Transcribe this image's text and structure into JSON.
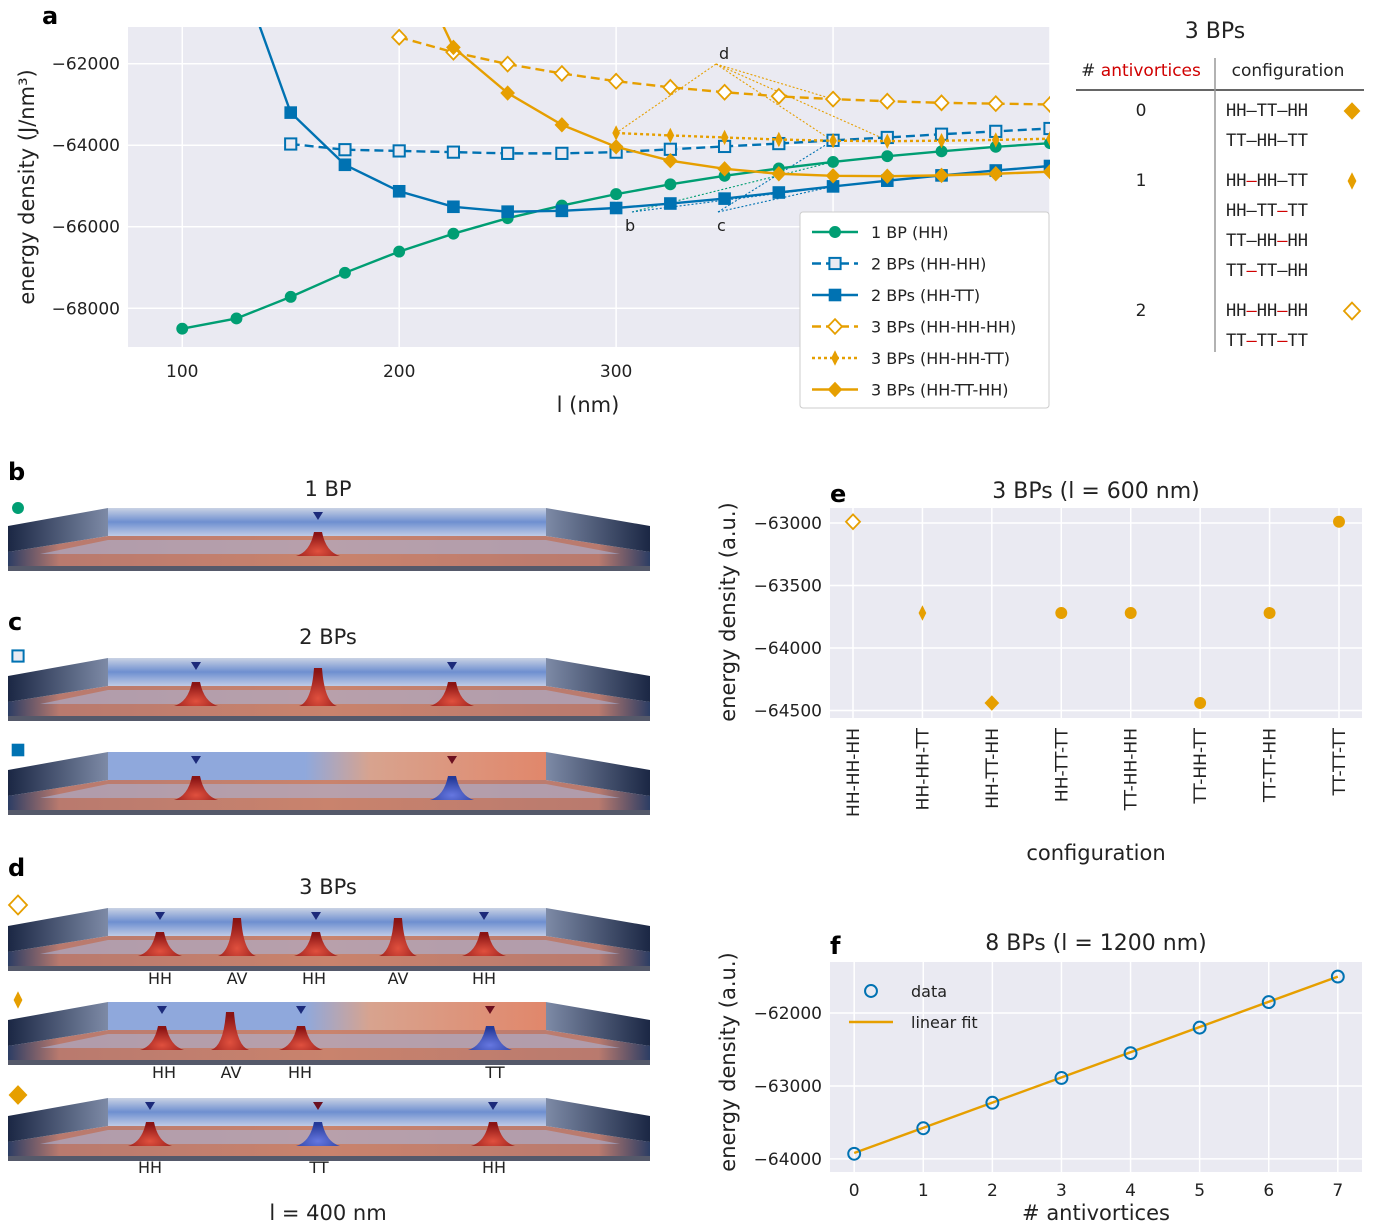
{
  "colors": {
    "green": "#009E73",
    "blue": "#0072B2",
    "orange": "#E69F00",
    "red": "#D00000",
    "axes_bg": "#EAEAF2"
  },
  "panel_letters": [
    "a",
    "b",
    "c",
    "d",
    "e",
    "f"
  ],
  "chart_data": [
    {
      "id": "a",
      "type": "line",
      "xlabel": "l (nm)",
      "ylabel": "energy density (J/nm³)",
      "xlim": [
        75,
        500
      ],
      "ylim": [
        -68950,
        -61100
      ],
      "xticks": [
        100,
        200,
        300,
        400
      ],
      "yticks": [
        -68000,
        -66000,
        -64000,
        -62000
      ],
      "ytick_labels": [
        "−68000",
        "−66000",
        "−64000",
        "−62000"
      ],
      "grid": true,
      "legend_position": "lower-right",
      "annotations": [
        "b",
        "c",
        "d"
      ],
      "series": [
        {
          "name": "1 BP (HH)",
          "color": "green",
          "marker": "circle-filled",
          "dash": "solid",
          "x": [
            100,
            125,
            150,
            175,
            200,
            225,
            250,
            275,
            300,
            325,
            350,
            375,
            400,
            425,
            450,
            475,
            500
          ],
          "y": [
            -68500,
            -68250,
            -67720,
            -67130,
            -66610,
            -66170,
            -65790,
            -65480,
            -65200,
            -64960,
            -64750,
            -64570,
            -64410,
            -64270,
            -64150,
            -64040,
            -63950
          ]
        },
        {
          "name": "2 BPs (HH-HH)",
          "color": "blue",
          "marker": "square-open",
          "dash": "dashed",
          "x": [
            150,
            175,
            200,
            225,
            250,
            275,
            300,
            325,
            350,
            375,
            400,
            425,
            450,
            475,
            500
          ],
          "y": [
            -63970,
            -64110,
            -64140,
            -64170,
            -64200,
            -64200,
            -64170,
            -64100,
            -64030,
            -63960,
            -63880,
            -63810,
            -63730,
            -63660,
            -63590
          ]
        },
        {
          "name": "2 BPs (HH-TT)",
          "color": "blue",
          "marker": "square-filled",
          "dash": "solid",
          "x": [
            150,
            175,
            200,
            225,
            250,
            275,
            300,
            325,
            350,
            375,
            400,
            425,
            450,
            475,
            500
          ],
          "y": [
            -63200,
            -64480,
            -65130,
            -65510,
            -65630,
            -65610,
            -65540,
            -65430,
            -65310,
            -65160,
            -65010,
            -64870,
            -64740,
            -64620,
            -64510
          ]
        },
        {
          "name": "3 BPs (HH-HH-HH)",
          "color": "orange",
          "marker": "diamond-open",
          "dash": "dashed",
          "x": [
            200,
            225,
            250,
            275,
            300,
            325,
            350,
            375,
            400,
            425,
            450,
            475,
            500
          ],
          "y": [
            -61350,
            -61720,
            -62010,
            -62240,
            -62430,
            -62580,
            -62700,
            -62800,
            -62870,
            -62920,
            -62960,
            -62980,
            -63000
          ]
        },
        {
          "name": "3 BPs (HH-HH-TT)",
          "color": "orange",
          "marker": "thin-diamond-filled",
          "dash": "dotted",
          "x": [
            300,
            325,
            350,
            375,
            400,
            425,
            450,
            475,
            500
          ],
          "y": [
            -63700,
            -63760,
            -63810,
            -63860,
            -63890,
            -63900,
            -63890,
            -63870,
            -63840
          ]
        },
        {
          "name": "3 BPs (HH-TT-HH)",
          "color": "orange",
          "marker": "diamond-filled",
          "dash": "solid",
          "x": [
            225,
            250,
            275,
            300,
            325,
            350,
            375,
            400,
            425,
            450,
            475,
            500
          ],
          "y": [
            -61600,
            -62720,
            -63500,
            -64040,
            -64380,
            -64580,
            -64700,
            -64750,
            -64760,
            -64740,
            -64700,
            -64650
          ]
        }
      ]
    },
    {
      "id": "e",
      "type": "scatter",
      "title": "3 BPs (l = 600 nm)",
      "xlabel": "configuration",
      "ylabel": "energy density (a.u.)",
      "categories": [
        "HH-HH-HH",
        "HH-HH-TT",
        "HH-TT-HH",
        "HH-TT-TT",
        "TT-HH-HH",
        "TT-HH-TT",
        "TT-TT-HH",
        "TT-TT-TT"
      ],
      "values": [
        -62990,
        -63720,
        -64440,
        -63720,
        -63720,
        -64440,
        -63720,
        -62990
      ],
      "markers": [
        "diamond-open",
        "thin-diamond-filled",
        "diamond-filled",
        "circle-filled",
        "circle-filled",
        "circle-filled",
        "circle-filled",
        "circle-filled"
      ],
      "ylim": [
        -64560,
        -62880
      ],
      "yticks": [
        -64500,
        -64000,
        -63500,
        -63000
      ],
      "ytick_labels": [
        "−64500",
        "−64000",
        "−63500",
        "−63000"
      ],
      "grid": true
    },
    {
      "id": "f",
      "type": "scatter",
      "title": "8 BPs (l = 1200 nm)",
      "xlabel": "# antivortices",
      "ylabel": "energy density (a.u.)",
      "xlim": [
        -0.35,
        7.35
      ],
      "ylim": [
        -64180,
        -61300
      ],
      "xticks": [
        0,
        1,
        2,
        3,
        4,
        5,
        6,
        7
      ],
      "yticks": [
        -64000,
        -63000,
        -62000
      ],
      "ytick_labels": [
        "−64000",
        "−63000",
        "−62000"
      ],
      "grid": true,
      "legend_position": "upper-left",
      "series": [
        {
          "name": "data",
          "marker": "circle-open",
          "color": "blue",
          "x": [
            0,
            1,
            2,
            3,
            4,
            5,
            6,
            7
          ],
          "y": [
            -63930,
            -63580,
            -63230,
            -62890,
            -62550,
            -62200,
            -61850,
            -61500
          ]
        },
        {
          "name": "linear fit",
          "line": true,
          "color": "orange",
          "x": [
            0,
            7
          ],
          "y": [
            -63920,
            -61500
          ]
        }
      ]
    }
  ],
  "table": {
    "title": "3 BPs",
    "col1_prefix": "# ",
    "col1_highlight": "antivortices",
    "col2_header": "configuration",
    "rows": [
      {
        "count": "0",
        "configs": [
          [
            [
              "HH",
              ""
            ],
            [
              "TT",
              ""
            ],
            [
              "HH",
              ""
            ]
          ],
          [
            [
              "TT",
              ""
            ],
            [
              "HH",
              ""
            ],
            [
              "TT",
              ""
            ]
          ]
        ],
        "marker": "diamond-filled"
      },
      {
        "count": "1",
        "configs": [
          [
            [
              "HH",
              "r"
            ],
            [
              "HH",
              ""
            ],
            [
              "TT",
              ""
            ]
          ],
          [
            [
              "HH",
              ""
            ],
            [
              "TT",
              "r"
            ],
            [
              "TT",
              ""
            ]
          ],
          [
            [
              "TT",
              ""
            ],
            [
              "HH",
              "r"
            ],
            [
              "HH",
              ""
            ]
          ],
          [
            [
              "TT",
              "r"
            ],
            [
              "TT",
              ""
            ],
            [
              "HH",
              ""
            ]
          ]
        ],
        "marker": "thin-diamond-filled"
      },
      {
        "count": "2",
        "configs": [
          [
            [
              "HH",
              "r"
            ],
            [
              "HH",
              "r"
            ],
            [
              "HH",
              ""
            ]
          ],
          [
            [
              "TT",
              "r"
            ],
            [
              "TT",
              "r"
            ],
            [
              "TT",
              ""
            ]
          ]
        ],
        "marker": "diamond-open"
      }
    ]
  },
  "simulations": {
    "b_title": "1 BP",
    "c_title": "2 BPs",
    "d_title": "3 BPs",
    "d_row1_labels": [
      "HH",
      "AV",
      "HH",
      "AV",
      "HH"
    ],
    "d_row2_labels": [
      "HH",
      "AV",
      "HH",
      "TT"
    ],
    "d_row3_labels": [
      "HH",
      "TT",
      "HH"
    ],
    "caption": "l = 400 nm"
  }
}
